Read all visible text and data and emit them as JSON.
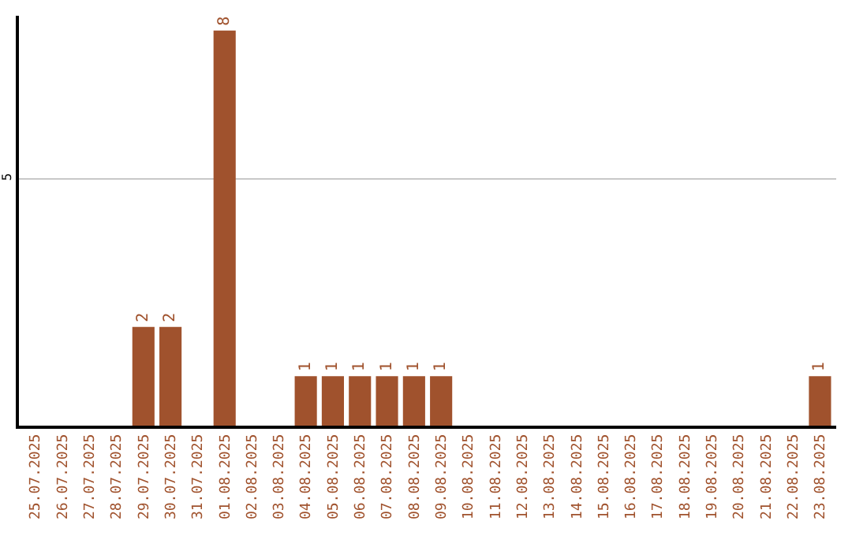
{
  "chart_data": {
    "type": "bar",
    "categories": [
      "25.07.2025",
      "26.07.2025",
      "27.07.2025",
      "28.07.2025",
      "29.07.2025",
      "30.07.2025",
      "31.07.2025",
      "01.08.2025",
      "02.08.2025",
      "03.08.2025",
      "04.08.2025",
      "05.08.2025",
      "06.08.2025",
      "07.08.2025",
      "08.08.2025",
      "09.08.2025",
      "10.08.2025",
      "11.08.2025",
      "12.08.2025",
      "13.08.2025",
      "14.08.2025",
      "15.08.2025",
      "16.08.2025",
      "17.08.2025",
      "18.08.2025",
      "19.08.2025",
      "20.08.2025",
      "21.08.2025",
      "22.08.2025",
      "23.08.2025"
    ],
    "values": [
      0,
      0,
      0,
      0,
      2,
      2,
      0,
      8,
      0,
      0,
      1,
      1,
      1,
      1,
      1,
      1,
      0,
      0,
      0,
      0,
      0,
      0,
      0,
      0,
      0,
      0,
      0,
      0,
      0,
      1
    ],
    "value_labels": [
      null,
      null,
      null,
      null,
      "2",
      "2",
      null,
      "8",
      null,
      null,
      "1",
      "1",
      "1",
      "1",
      "1",
      "1",
      null,
      null,
      null,
      null,
      null,
      null,
      null,
      null,
      null,
      null,
      null,
      null,
      null,
      "1"
    ],
    "color": "#a0522d",
    "ylim": [
      0,
      8.3
    ],
    "yticks": [
      5
    ],
    "grid": "y"
  }
}
